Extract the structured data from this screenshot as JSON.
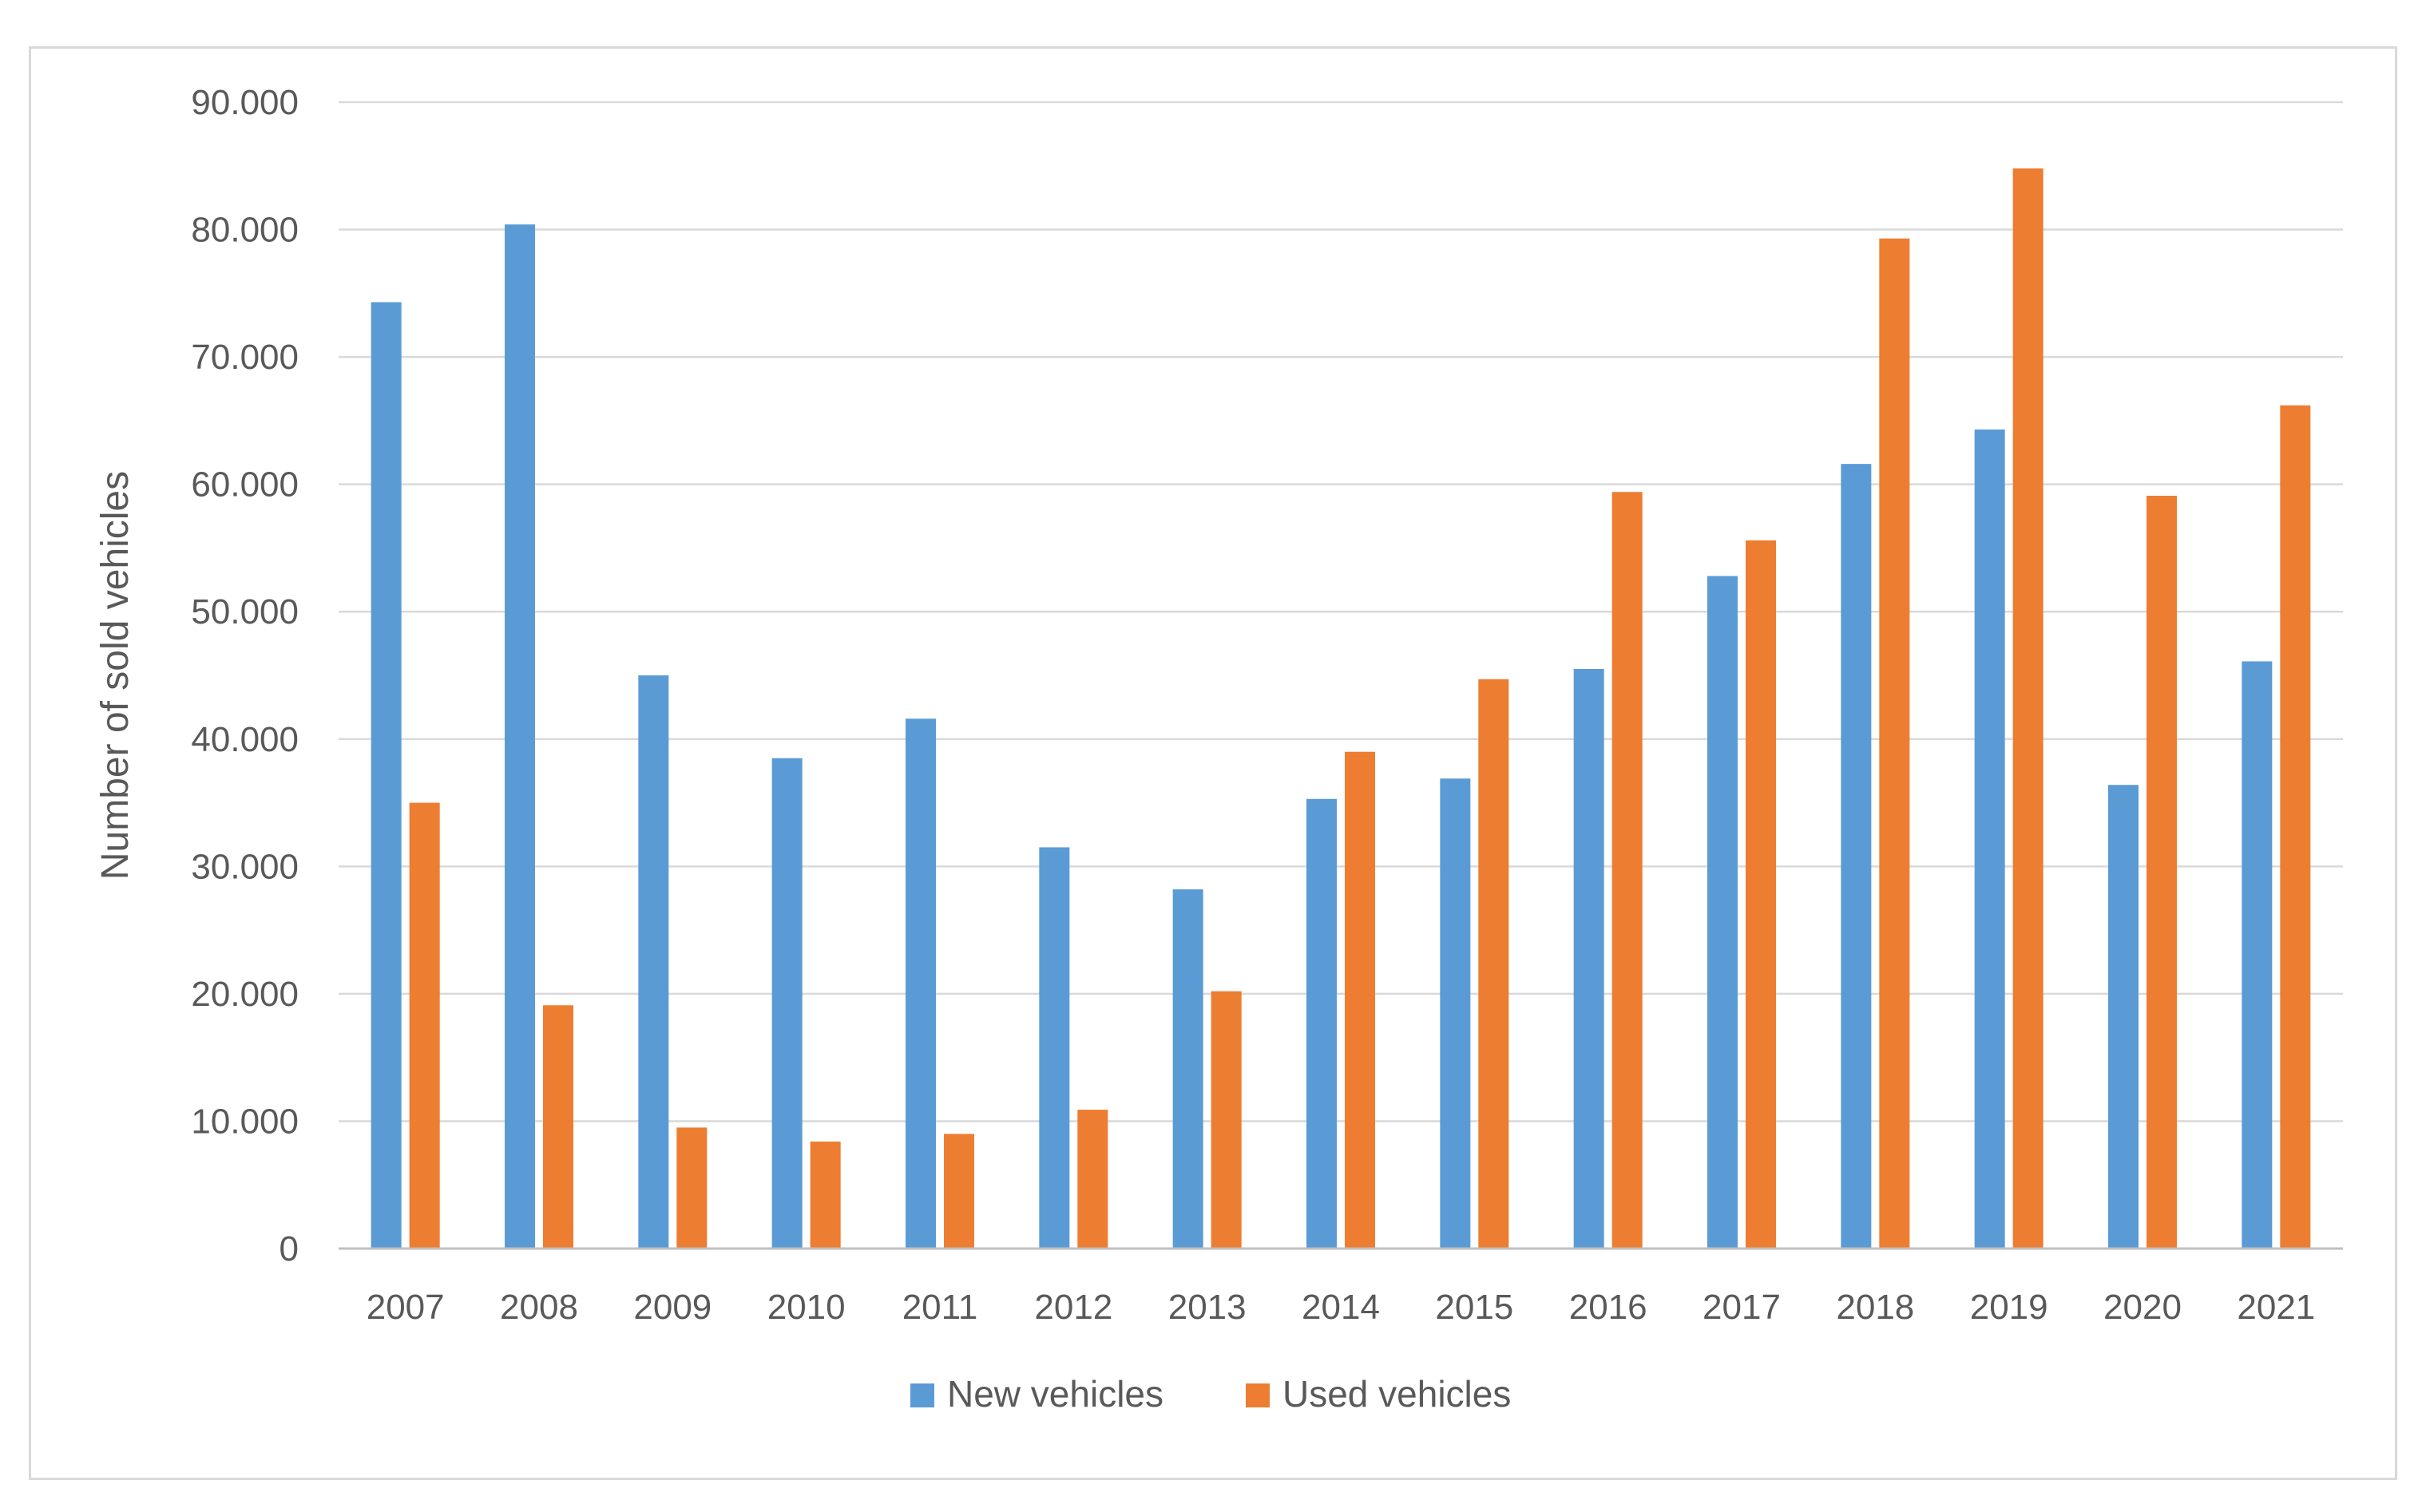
{
  "chart_data": {
    "type": "bar",
    "title": "",
    "xlabel": "",
    "ylabel": "Number of sold vehicles",
    "ylim": [
      0,
      90000
    ],
    "y_ticks": [
      0,
      10000,
      20000,
      30000,
      40000,
      50000,
      60000,
      70000,
      80000,
      90000
    ],
    "y_tick_labels": [
      "0",
      "10.000",
      "20.000",
      "30.000",
      "40.000",
      "50.000",
      "60.000",
      "70.000",
      "80.000",
      "90.000"
    ],
    "grid": true,
    "legend_position": "bottom",
    "categories": [
      "2007",
      "2008",
      "2009",
      "2010",
      "2011",
      "2012",
      "2013",
      "2014",
      "2015",
      "2016",
      "2017",
      "2018",
      "2019",
      "2020",
      "2021"
    ],
    "series": [
      {
        "name": "New vehicles",
        "color": "#5b9bd5",
        "values": [
          74300,
          80400,
          45000,
          38500,
          41600,
          31500,
          28200,
          35300,
          36900,
          45500,
          52800,
          61600,
          64300,
          36400,
          46100
        ]
      },
      {
        "name": "Used vehicles",
        "color": "#ed7d31",
        "values": [
          35000,
          19100,
          9500,
          8400,
          9000,
          10900,
          20200,
          39000,
          44700,
          59400,
          55600,
          79300,
          84800,
          59100,
          66200
        ]
      }
    ]
  }
}
